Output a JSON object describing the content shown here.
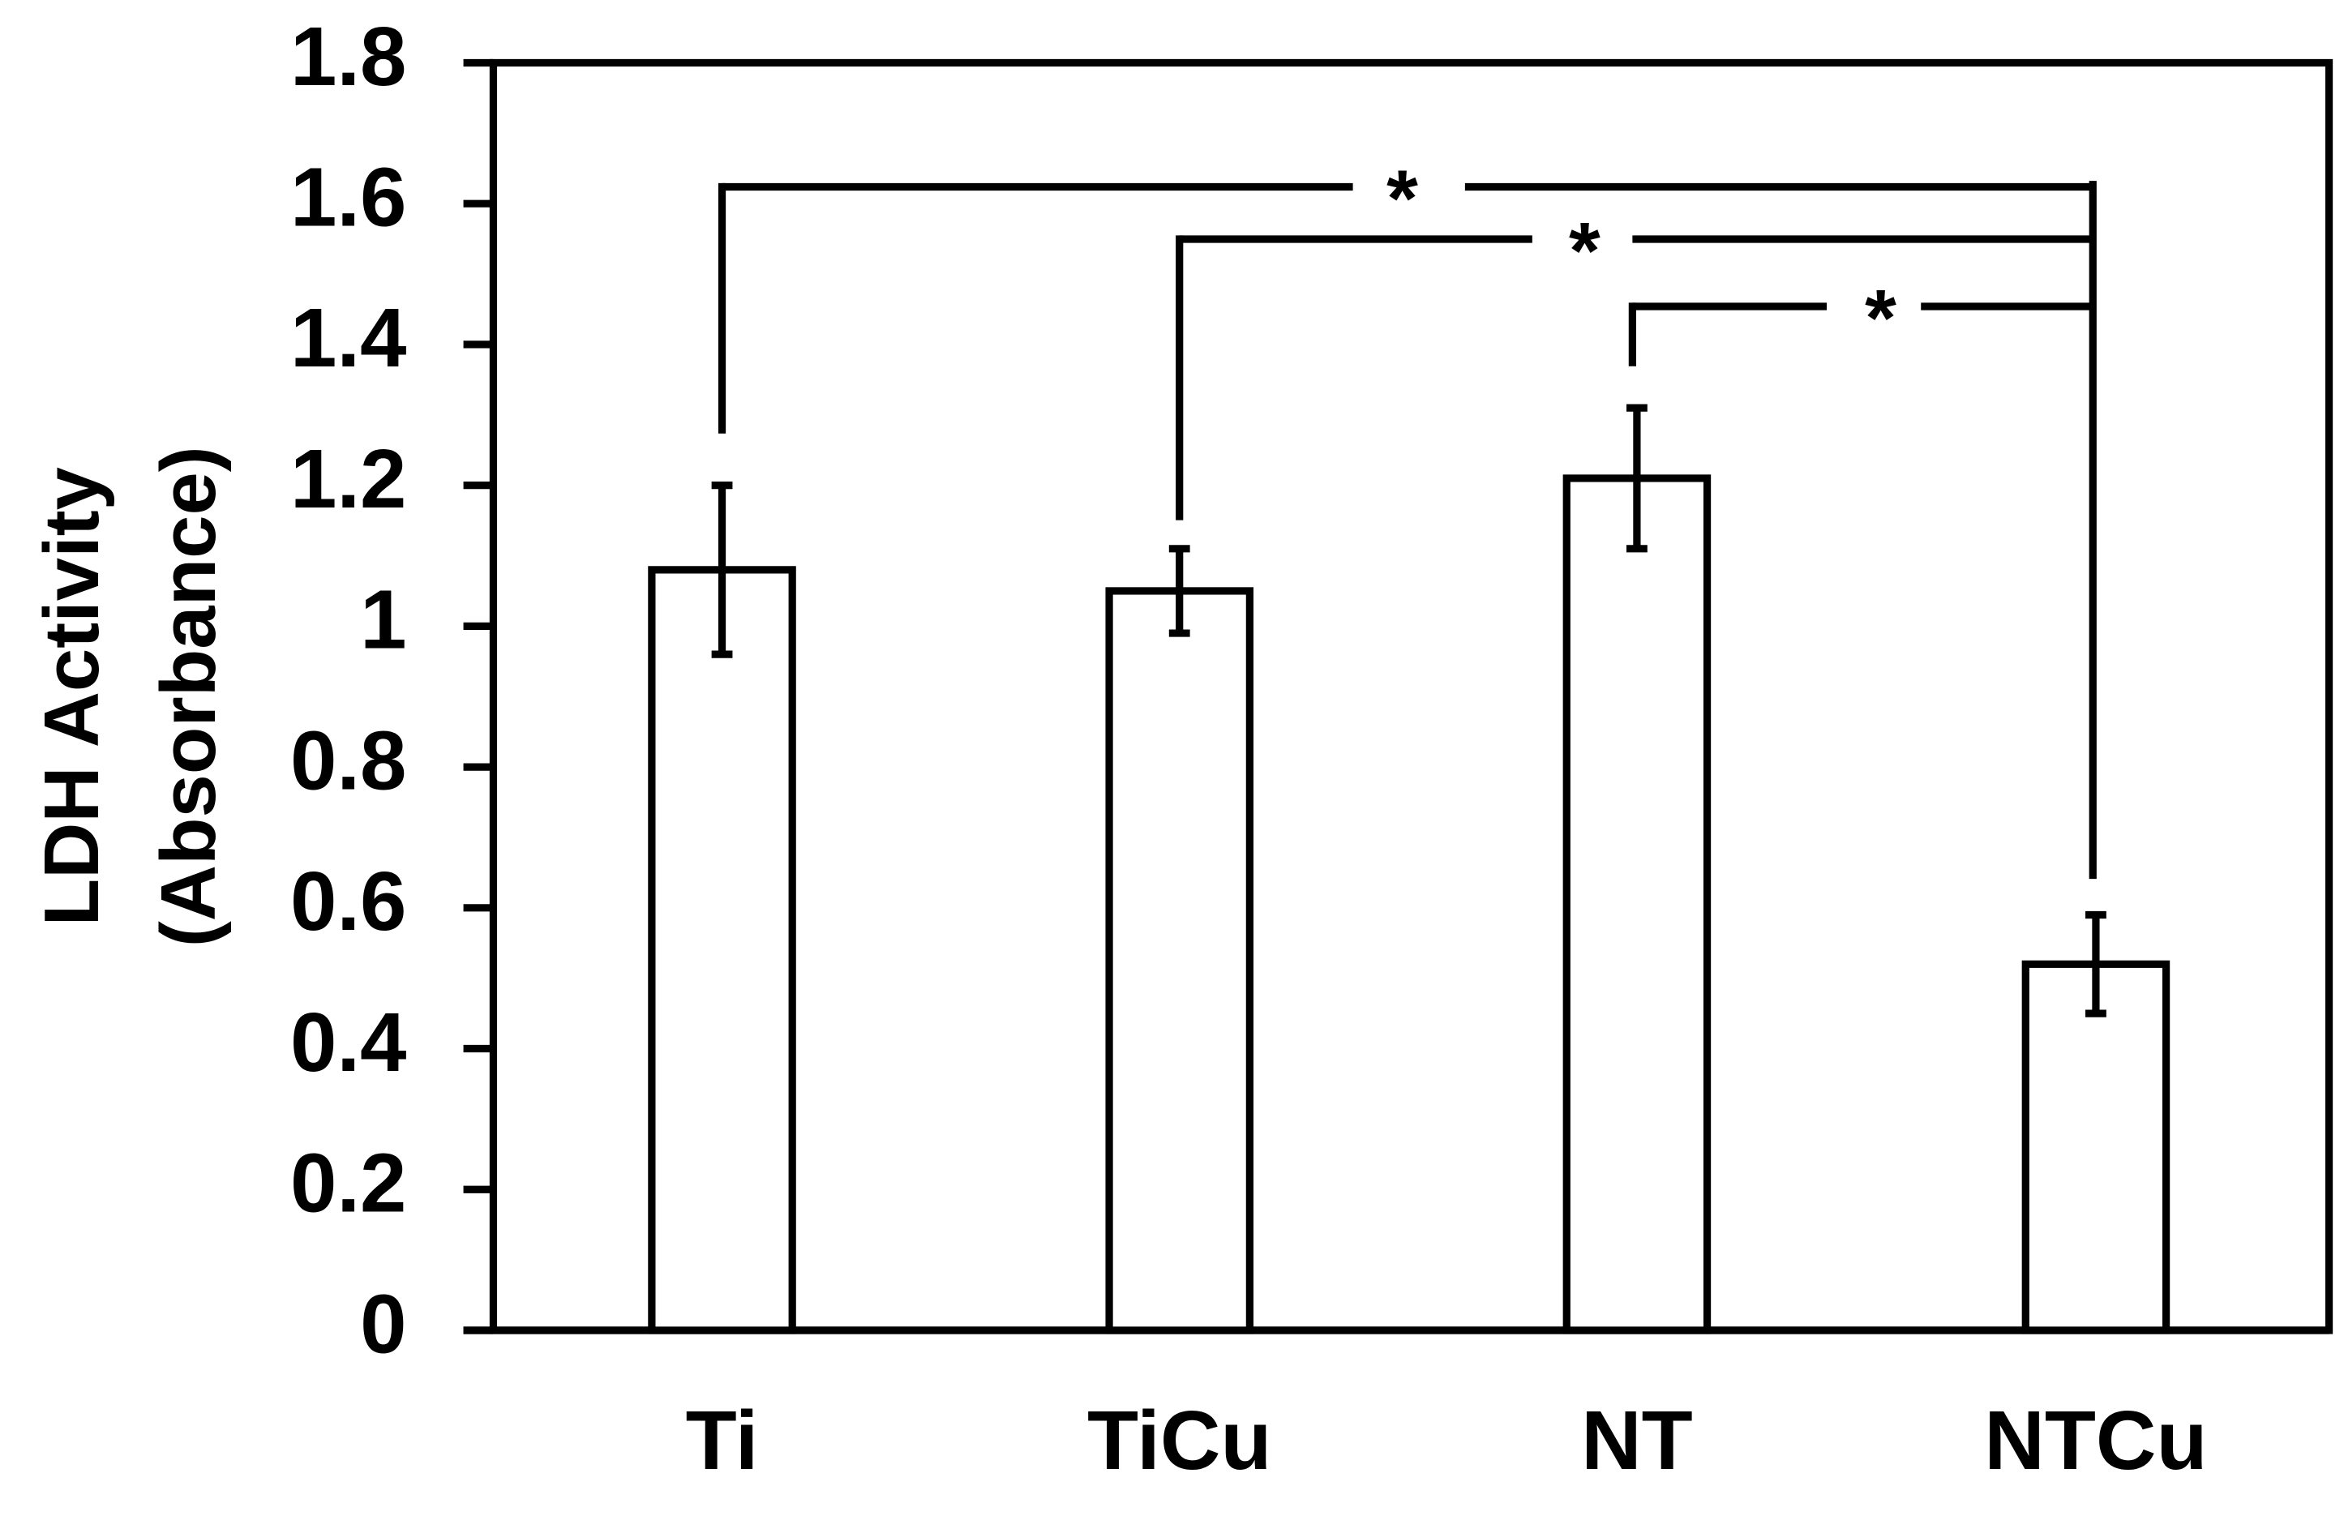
{
  "chart_data": {
    "type": "bar",
    "y_label": [
      "LDH Activity",
      "(Absorbance)"
    ],
    "categories": [
      "Ti",
      "TiCu",
      "NT",
      "NTCu"
    ],
    "values": [
      1.08,
      1.05,
      1.21,
      0.52
    ],
    "errors": [
      0.12,
      0.06,
      0.1,
      0.07
    ],
    "color": "#ffffff",
    "ylim": [
      0,
      1.8
    ],
    "yticks": [
      0,
      0.2,
      0.4,
      0.6,
      0.8,
      1,
      1.2,
      1.4,
      1.6,
      1.8
    ],
    "annotations": [
      "*",
      "*",
      "*"
    ]
  }
}
